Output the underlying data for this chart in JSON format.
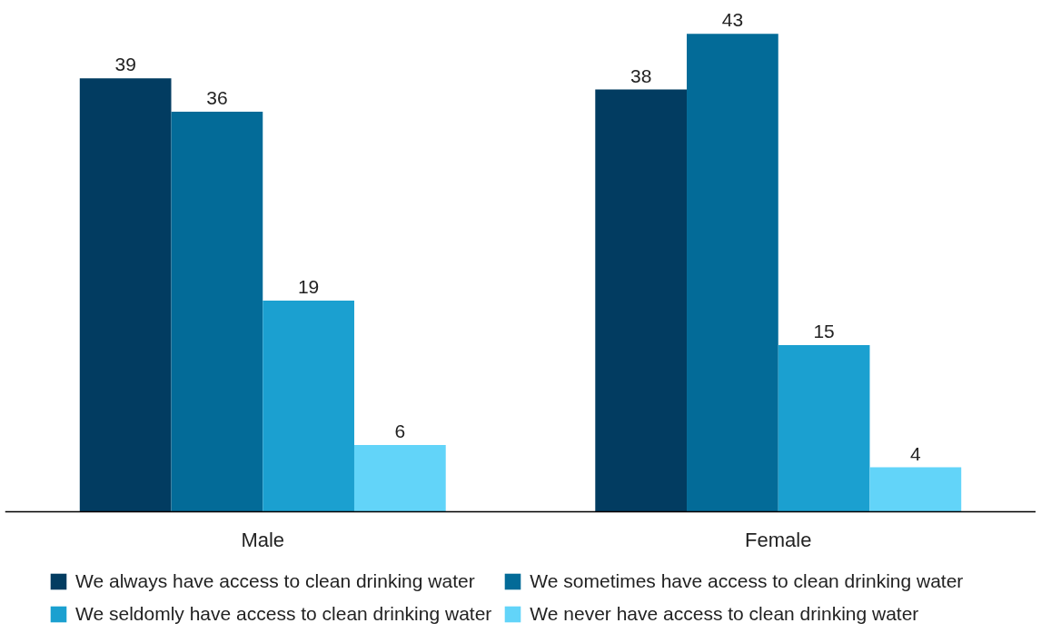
{
  "chart_data": {
    "type": "bar",
    "categories": [
      "Male",
      "Female"
    ],
    "series": [
      {
        "name": "We always have access to clean drinking water",
        "color": "#023c61",
        "values": [
          39,
          38
        ]
      },
      {
        "name": "We sometimes have access to clean drinking water",
        "color": "#036b98",
        "values": [
          36,
          43
        ]
      },
      {
        "name": "We seldomly have access to clean drinking water",
        "color": "#1ba0d0",
        "values": [
          19,
          15
        ]
      },
      {
        "name": "We never have access to clean drinking water",
        "color": "#62d4f9",
        "values": [
          6,
          4
        ]
      }
    ],
    "data_labels": true,
    "legend": "bottom",
    "grid": false,
    "tick_labels": "x"
  }
}
